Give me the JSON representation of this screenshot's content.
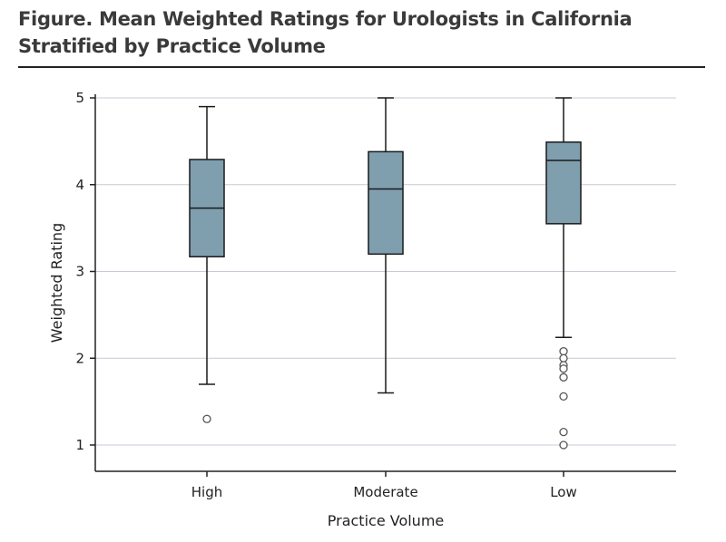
{
  "title": "Figure. Mean Weighted Ratings for Urologists in California Stratified by Practice Volume",
  "chart_data": {
    "type": "box",
    "xlabel": "Practice Volume",
    "ylabel": "Weighted Rating",
    "ylim": [
      0.8,
      5
    ],
    "yticks": [
      1,
      2,
      3,
      4,
      5
    ],
    "grid": true,
    "categories": [
      "High",
      "Moderate",
      "Low"
    ],
    "boxes": [
      {
        "category": "High",
        "whisker_low": 1.7,
        "q1": 3.17,
        "median": 3.73,
        "q3": 4.29,
        "whisker_high": 4.9,
        "outliers": [
          1.3
        ]
      },
      {
        "category": "Moderate",
        "whisker_low": 1.6,
        "q1": 3.2,
        "median": 3.95,
        "q3": 4.38,
        "whisker_high": 5.0,
        "outliers": []
      },
      {
        "category": "Low",
        "whisker_low": 2.24,
        "q1": 3.55,
        "median": 4.28,
        "q3": 4.49,
        "whisker_high": 5.0,
        "outliers": [
          2.08,
          2.0,
          1.92,
          1.88,
          1.78,
          1.56,
          1.15,
          1.0
        ]
      }
    ],
    "colors": {
      "box_fill": "#7f9faf",
      "box_stroke": "#1a1a1a",
      "grid": "#c9c9d6",
      "outlier_stroke": "#555555"
    }
  }
}
